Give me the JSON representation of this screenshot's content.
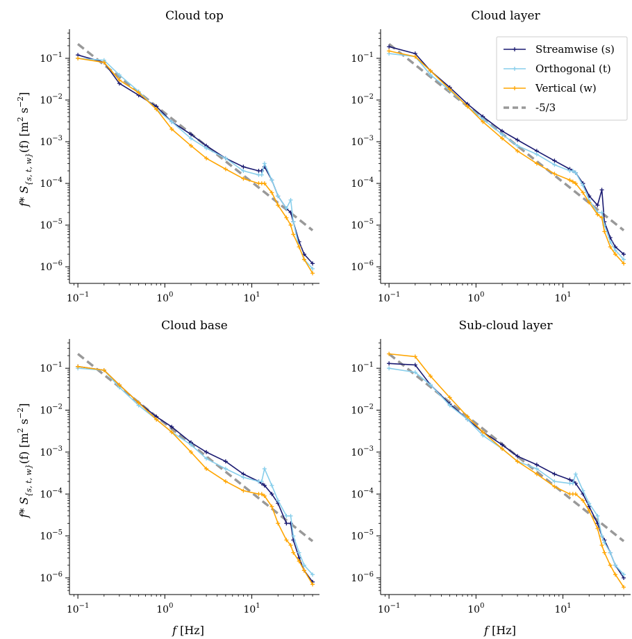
{
  "figure": {
    "ylabel_main": "f* S",
    "ylabel_sub": "{s, t, w}",
    "ylabel_tail": "(f) [m",
    "ylabel_unit_tail": " s",
    "ylabel_close": "]",
    "ylabel_exp1": "2",
    "ylabel_exp2": "−2",
    "xlabel_main": "f",
    "xlabel_unit": " [Hz]"
  },
  "legend": {
    "placement": "upper-right of Cloud layer panel",
    "entries": [
      {
        "label": "Streamwise (s)",
        "color": "#191970",
        "style": "line-plus"
      },
      {
        "label": "Orthogonal (t)",
        "color": "#87ceeb",
        "style": "line-plus"
      },
      {
        "label": "Vertical (w)",
        "color": "#ffa500",
        "style": "line-plus"
      },
      {
        "label": "-5/3",
        "color": "#999999",
        "style": "dashed"
      }
    ]
  },
  "colors": {
    "streamwise": "#191970",
    "orthogonal": "#87ceeb",
    "vertical": "#ffa500",
    "reference": "#999999"
  },
  "chart_data": [
    {
      "type": "line",
      "title": "Cloud top",
      "xscale": "log",
      "yscale": "log",
      "xlim": [
        0.08,
        60
      ],
      "ylim": [
        4e-07,
        0.5
      ],
      "xticks": [
        {
          "v": 0.1,
          "b": "10",
          "e": "−1"
        },
        {
          "v": 1,
          "b": "10",
          "e": "0"
        },
        {
          "v": 10,
          "b": "10",
          "e": "1"
        }
      ],
      "yticks": [
        {
          "v": 1e-06,
          "b": "10",
          "e": "−6"
        },
        {
          "v": 1e-05,
          "b": "10",
          "e": "−5"
        },
        {
          "v": 0.0001,
          "b": "10",
          "e": "−4"
        },
        {
          "v": 0.001,
          "b": "10",
          "e": "−3"
        },
        {
          "v": 0.01,
          "b": "10",
          "e": "−2"
        },
        {
          "v": 0.1,
          "b": "10",
          "e": "−1"
        }
      ],
      "x": [
        0.1,
        0.2,
        0.3,
        0.5,
        0.8,
        1.2,
        2,
        3,
        5,
        8,
        12,
        13,
        14,
        17,
        20,
        25,
        28,
        30,
        35,
        40,
        50
      ],
      "series": [
        {
          "name": "Streamwise (s)",
          "values": [
            0.12,
            0.08,
            0.025,
            0.013,
            0.007,
            0.003,
            0.0015,
            0.0008,
            0.0004,
            0.00025,
            0.0002,
            0.0002,
            0.00025,
            0.00012,
            5e-05,
            2.5e-05,
            2e-05,
            1.2e-05,
            4e-06,
            2e-06,
            1.2e-06
          ]
        },
        {
          "name": "Orthogonal (t)",
          "values": [
            0.1,
            0.09,
            0.04,
            0.016,
            0.006,
            0.003,
            0.0012,
            0.0007,
            0.0004,
            0.0002,
            0.00016,
            0.00016,
            0.0003,
            0.00012,
            5e-05,
            2.5e-05,
            4e-05,
            1.2e-05,
            3e-06,
            1.5e-06,
            9e-07
          ]
        },
        {
          "name": "Vertical (w)",
          "values": [
            0.1,
            0.08,
            0.03,
            0.015,
            0.006,
            0.002,
            0.0008,
            0.0004,
            0.00022,
            0.00013,
            0.0001,
            0.0001,
            0.0001,
            6e-05,
            3e-05,
            1.5e-05,
            1e-05,
            6e-06,
            3e-06,
            1.5e-06,
            7e-07
          ]
        }
      ],
      "reference": {
        "name": "-5/3",
        "x": [
          0.1,
          50
        ],
        "values": [
          0.22,
          7.5e-06
        ]
      }
    },
    {
      "type": "line",
      "title": "Cloud layer",
      "xscale": "log",
      "yscale": "log",
      "xlim": [
        0.08,
        60
      ],
      "ylim": [
        4e-07,
        0.5
      ],
      "xticks": [
        {
          "v": 0.1,
          "b": "10",
          "e": "−1"
        },
        {
          "v": 1,
          "b": "10",
          "e": "0"
        },
        {
          "v": 10,
          "b": "10",
          "e": "1"
        }
      ],
      "yticks": [
        {
          "v": 1e-06,
          "b": "10",
          "e": "−6"
        },
        {
          "v": 1e-05,
          "b": "10",
          "e": "−5"
        },
        {
          "v": 0.0001,
          "b": "10",
          "e": "−4"
        },
        {
          "v": 0.001,
          "b": "10",
          "e": "−3"
        },
        {
          "v": 0.01,
          "b": "10",
          "e": "−2"
        },
        {
          "v": 0.1,
          "b": "10",
          "e": "−1"
        }
      ],
      "x": [
        0.1,
        0.2,
        0.3,
        0.5,
        0.8,
        1.2,
        2,
        3,
        5,
        8,
        12,
        13,
        14,
        17,
        20,
        25,
        28,
        30,
        35,
        40,
        50
      ],
      "series": [
        {
          "name": "Streamwise (s)",
          "values": [
            0.19,
            0.13,
            0.05,
            0.02,
            0.008,
            0.004,
            0.0018,
            0.0011,
            0.0006,
            0.00035,
            0.00022,
            0.0002,
            0.00018,
            0.0001,
            5e-05,
            3e-05,
            7e-05,
            1.2e-05,
            5e-06,
            3e-06,
            2e-06
          ]
        },
        {
          "name": "Orthogonal (t)",
          "values": [
            0.13,
            0.11,
            0.04,
            0.017,
            0.007,
            0.0035,
            0.0015,
            0.0008,
            0.0005,
            0.00028,
            0.0002,
            0.0002,
            0.00018,
            9e-05,
            4e-05,
            2e-05,
            2e-05,
            1e-05,
            4e-06,
            2.5e-06,
            1.5e-06
          ]
        },
        {
          "name": "Vertical (w)",
          "values": [
            0.15,
            0.11,
            0.05,
            0.018,
            0.007,
            0.003,
            0.0012,
            0.0006,
            0.0003,
            0.00017,
            0.00012,
            0.00011,
            0.0001,
            6e-05,
            3.5e-05,
            1.8e-05,
            1.5e-05,
            7e-06,
            3e-06,
            2e-06,
            1.2e-06
          ]
        }
      ],
      "reference": {
        "name": "-5/3",
        "x": [
          0.1,
          50
        ],
        "values": [
          0.22,
          7.5e-06
        ]
      }
    },
    {
      "type": "line",
      "title": "Cloud base",
      "xscale": "log",
      "yscale": "log",
      "xlim": [
        0.08,
        60
      ],
      "ylim": [
        4e-07,
        0.5
      ],
      "xticks": [
        {
          "v": 0.1,
          "b": "10",
          "e": "−1"
        },
        {
          "v": 1,
          "b": "10",
          "e": "0"
        },
        {
          "v": 10,
          "b": "10",
          "e": "1"
        }
      ],
      "yticks": [
        {
          "v": 1e-06,
          "b": "10",
          "e": "−6"
        },
        {
          "v": 1e-05,
          "b": "10",
          "e": "−5"
        },
        {
          "v": 0.0001,
          "b": "10",
          "e": "−4"
        },
        {
          "v": 0.001,
          "b": "10",
          "e": "−3"
        },
        {
          "v": 0.01,
          "b": "10",
          "e": "−2"
        },
        {
          "v": 0.1,
          "b": "10",
          "e": "−1"
        }
      ],
      "x": [
        0.1,
        0.2,
        0.3,
        0.5,
        0.8,
        1.2,
        2,
        3,
        5,
        8,
        12,
        13,
        14,
        17,
        20,
        25,
        28,
        30,
        35,
        40,
        50
      ],
      "series": [
        {
          "name": "Streamwise (s)",
          "values": [
            0.11,
            0.09,
            0.04,
            0.015,
            0.007,
            0.004,
            0.0017,
            0.001,
            0.0006,
            0.0003,
            0.0002,
            0.00018,
            0.00016,
            0.0001,
            6e-05,
            2e-05,
            2e-05,
            8e-06,
            3e-06,
            1.5e-06,
            8e-07
          ]
        },
        {
          "name": "Orthogonal (t)",
          "values": [
            0.1,
            0.09,
            0.035,
            0.013,
            0.006,
            0.003,
            0.0015,
            0.0007,
            0.0004,
            0.00025,
            0.0002,
            0.0002,
            0.0004,
            0.00016,
            7e-05,
            3e-05,
            3e-05,
            1e-05,
            4e-06,
            2e-06,
            1.2e-06
          ]
        },
        {
          "name": "Vertical (w)",
          "values": [
            0.11,
            0.09,
            0.04,
            0.015,
            0.006,
            0.003,
            0.001,
            0.0004,
            0.0002,
            0.00012,
            0.0001,
            0.0001,
            9e-05,
            5e-05,
            2e-05,
            8e-06,
            6e-06,
            4e-06,
            2.5e-06,
            1.5e-06,
            7e-07
          ]
        }
      ],
      "reference": {
        "name": "-5/3",
        "x": [
          0.1,
          50
        ],
        "values": [
          0.22,
          7.5e-06
        ]
      }
    },
    {
      "type": "line",
      "title": "Sub-cloud layer",
      "xscale": "log",
      "yscale": "log",
      "xlim": [
        0.08,
        60
      ],
      "ylim": [
        4e-07,
        0.5
      ],
      "xticks": [
        {
          "v": 0.1,
          "b": "10",
          "e": "−1"
        },
        {
          "v": 1,
          "b": "10",
          "e": "0"
        },
        {
          "v": 10,
          "b": "10",
          "e": "1"
        }
      ],
      "yticks": [
        {
          "v": 1e-06,
          "b": "10",
          "e": "−6"
        },
        {
          "v": 1e-05,
          "b": "10",
          "e": "−5"
        },
        {
          "v": 0.0001,
          "b": "10",
          "e": "−4"
        },
        {
          "v": 0.001,
          "b": "10",
          "e": "−3"
        },
        {
          "v": 0.01,
          "b": "10",
          "e": "−2"
        },
        {
          "v": 0.1,
          "b": "10",
          "e": "−1"
        }
      ],
      "x": [
        0.1,
        0.2,
        0.3,
        0.5,
        0.8,
        1.2,
        2,
        3,
        5,
        8,
        12,
        13,
        14,
        17,
        20,
        25,
        28,
        30,
        35,
        40,
        50
      ],
      "series": [
        {
          "name": "Streamwise (s)",
          "values": [
            0.13,
            0.12,
            0.04,
            0.014,
            0.006,
            0.003,
            0.0015,
            0.0008,
            0.0005,
            0.0003,
            0.00022,
            0.0002,
            0.00018,
            0.0001,
            5e-05,
            2e-05,
            1e-05,
            8e-06,
            4e-06,
            2e-06,
            1e-06
          ]
        },
        {
          "name": "Orthogonal (t)",
          "values": [
            0.1,
            0.08,
            0.04,
            0.013,
            0.006,
            0.0025,
            0.0012,
            0.0006,
            0.0004,
            0.0002,
            0.00018,
            0.00018,
            0.0003,
            0.00012,
            6e-05,
            3e-05,
            1e-05,
            7e-06,
            4e-06,
            2e-06,
            1.2e-06
          ]
        },
        {
          "name": "Vertical (w)",
          "values": [
            0.22,
            0.19,
            0.065,
            0.02,
            0.007,
            0.003,
            0.0012,
            0.0006,
            0.0003,
            0.00015,
            0.0001,
            0.0001,
            0.0001,
            7e-05,
            4e-05,
            1.5e-05,
            6e-06,
            4e-06,
            2e-06,
            1.2e-06,
            6e-07
          ]
        }
      ],
      "reference": {
        "name": "-5/3",
        "x": [
          0.1,
          50
        ],
        "values": [
          0.22,
          7.5e-06
        ]
      }
    }
  ]
}
